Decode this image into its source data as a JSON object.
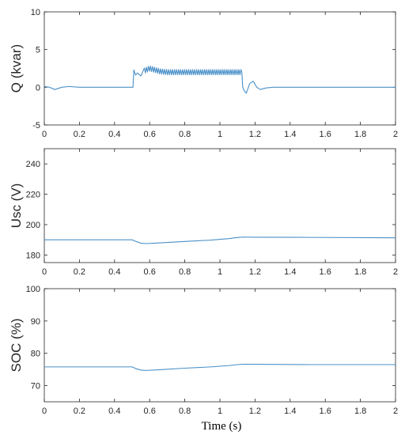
{
  "xlabel": "Time (s)",
  "line_color": "#4a90c8",
  "chart_data": [
    {
      "type": "line",
      "ylabel": "Q (kvar)",
      "xlim": [
        0,
        2
      ],
      "ylim": [
        -5,
        10
      ],
      "xticks": [
        0,
        0.2,
        0.4,
        0.6,
        0.8,
        1,
        1.2,
        1.4,
        1.6,
        1.8,
        2
      ],
      "yticks": [
        -5,
        0,
        5,
        10
      ],
      "grid": false,
      "series": [
        {
          "x": [
            0,
            0.03,
            0.06,
            0.1,
            0.14,
            0.2,
            0.3,
            0.4,
            0.49,
            0.505,
            0.51,
            0.52,
            0.53,
            0.55,
            0.57,
            0.6,
            0.63,
            0.66,
            0.7,
            0.8,
            0.9,
            1.0,
            1.1,
            1.125,
            1.13,
            1.14,
            1.15,
            1.17,
            1.19,
            1.21,
            1.23,
            1.26,
            1.3,
            1.4,
            1.6,
            1.8,
            2.0
          ],
          "y": [
            0.1,
            0.0,
            -0.3,
            0.0,
            0.1,
            0.0,
            0.0,
            0.0,
            0.0,
            0.0,
            2.3,
            1.6,
            1.9,
            1.5,
            2.2,
            2.5,
            2.3,
            2.1,
            2.0,
            2.0,
            2.0,
            2.0,
            2.0,
            2.0,
            0.0,
            -0.5,
            -0.8,
            0.5,
            0.8,
            0.0,
            -0.3,
            -0.1,
            0.0,
            0.0,
            0.0,
            0.0,
            0.0
          ],
          "ripple": {
            "from": 0.57,
            "to": 1.12,
            "amplitude": 0.35,
            "cycles": 48
          }
        }
      ]
    },
    {
      "type": "line",
      "ylabel": "Usc (V)",
      "xlim": [
        0,
        2
      ],
      "ylim": [
        175,
        250
      ],
      "xticks": [
        0,
        0.2,
        0.4,
        0.6,
        0.8,
        1,
        1.2,
        1.4,
        1.6,
        1.8,
        2
      ],
      "yticks": [
        180,
        200,
        220,
        240
      ],
      "grid": false,
      "series": [
        {
          "x": [
            0,
            0.5,
            0.52,
            0.55,
            0.58,
            0.65,
            0.8,
            0.95,
            1.05,
            1.1,
            1.13,
            1.2,
            1.5,
            2.0
          ],
          "y": [
            190.0,
            190.0,
            189.0,
            187.8,
            187.5,
            187.9,
            188.9,
            189.8,
            190.8,
            191.5,
            191.8,
            191.7,
            191.6,
            191.3
          ]
        }
      ]
    },
    {
      "type": "line",
      "ylabel": "SOC (%)",
      "xlim": [
        0,
        2
      ],
      "ylim": [
        65,
        100
      ],
      "xticks": [
        0,
        0.2,
        0.4,
        0.6,
        0.8,
        1,
        1.2,
        1.4,
        1.6,
        1.8,
        2
      ],
      "yticks": [
        70,
        80,
        90,
        100
      ],
      "grid": false,
      "series": [
        {
          "x": [
            0,
            0.5,
            0.52,
            0.55,
            0.58,
            0.65,
            0.8,
            0.95,
            1.05,
            1.1,
            1.13,
            1.2,
            1.5,
            2.0
          ],
          "y": [
            75.8,
            75.8,
            75.3,
            74.8,
            74.7,
            74.9,
            75.4,
            75.8,
            76.2,
            76.5,
            76.6,
            76.6,
            76.5,
            76.5
          ]
        }
      ]
    }
  ]
}
